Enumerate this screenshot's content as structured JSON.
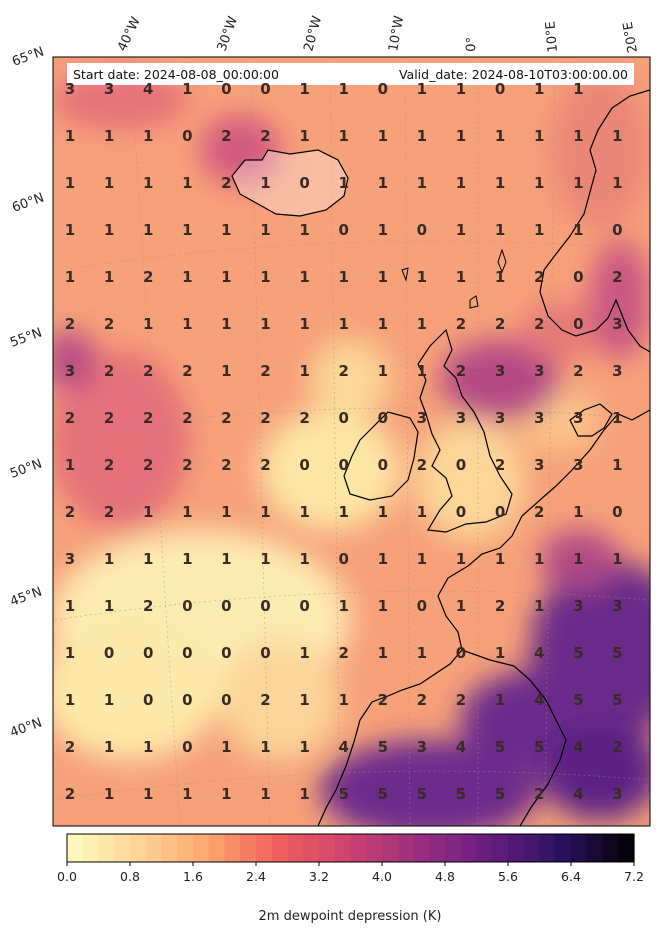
{
  "header": {
    "start_date": "Start date: 2024-08-08_00:00:00",
    "valid_date": "Valid_date: 2024-08-10T03:00:00.00"
  },
  "lon_labels": [
    "40°W",
    "30°W",
    "20°W",
    "10°W",
    "0°",
    "10°E",
    "20°E"
  ],
  "lat_labels": [
    "65°N",
    "60°N",
    "55°N",
    "50°N",
    "45°N",
    "40°N"
  ],
  "grid_values": [
    [
      "3",
      "3",
      "4",
      "1",
      "0",
      "0",
      "1",
      "1",
      "0",
      "1",
      "1",
      "0",
      "1",
      "1",
      ""
    ],
    [
      "1",
      "1",
      "1",
      "0",
      "2",
      "2",
      "1",
      "1",
      "1",
      "1",
      "1",
      "1",
      "1",
      "1",
      "1"
    ],
    [
      "1",
      "1",
      "1",
      "1",
      "2",
      "1",
      "0",
      "1",
      "1",
      "1",
      "1",
      "1",
      "1",
      "1",
      "1"
    ],
    [
      "1",
      "1",
      "1",
      "1",
      "1",
      "1",
      "1",
      "0",
      "1",
      "0",
      "1",
      "1",
      "1",
      "1",
      "0"
    ],
    [
      "1",
      "1",
      "2",
      "1",
      "1",
      "1",
      "1",
      "1",
      "1",
      "1",
      "1",
      "1",
      "2",
      "0",
      "2"
    ],
    [
      "2",
      "2",
      "1",
      "1",
      "1",
      "1",
      "1",
      "1",
      "1",
      "1",
      "2",
      "2",
      "2",
      "0",
      "3"
    ],
    [
      "3",
      "2",
      "2",
      "2",
      "1",
      "2",
      "1",
      "2",
      "1",
      "1",
      "2",
      "3",
      "3",
      "2",
      "3"
    ],
    [
      "2",
      "2",
      "2",
      "2",
      "2",
      "2",
      "2",
      "0",
      "0",
      "3",
      "3",
      "3",
      "3",
      "3",
      "1"
    ],
    [
      "1",
      "2",
      "2",
      "2",
      "2",
      "2",
      "0",
      "0",
      "0",
      "2",
      "0",
      "2",
      "3",
      "3",
      "1"
    ],
    [
      "2",
      "2",
      "1",
      "1",
      "1",
      "1",
      "1",
      "1",
      "1",
      "1",
      "0",
      "0",
      "2",
      "1",
      "0"
    ],
    [
      "3",
      "1",
      "1",
      "1",
      "1",
      "1",
      "1",
      "0",
      "1",
      "1",
      "1",
      "1",
      "1",
      "1",
      "1"
    ],
    [
      "1",
      "1",
      "2",
      "0",
      "0",
      "0",
      "0",
      "1",
      "1",
      "0",
      "1",
      "2",
      "1",
      "3",
      "3"
    ],
    [
      "1",
      "0",
      "0",
      "0",
      "0",
      "0",
      "1",
      "2",
      "1",
      "1",
      "0",
      "1",
      "4",
      "5",
      "5"
    ],
    [
      "1",
      "1",
      "0",
      "0",
      "0",
      "2",
      "1",
      "1",
      "2",
      "2",
      "2",
      "1",
      "4",
      "5",
      "5"
    ],
    [
      "2",
      "1",
      "1",
      "0",
      "1",
      "1",
      "1",
      "4",
      "5",
      "3",
      "4",
      "5",
      "5",
      "4",
      "2"
    ],
    [
      "2",
      "1",
      "1",
      "1",
      "1",
      "1",
      "1",
      "5",
      "5",
      "5",
      "5",
      "5",
      "2",
      "4",
      "3"
    ]
  ],
  "colorbar": {
    "ticks": [
      "0.0",
      "0.8",
      "1.6",
      "2.4",
      "3.2",
      "4.0",
      "4.8",
      "5.6",
      "6.4",
      "7.2"
    ],
    "label": "2m dewpoint depression (K)",
    "min": 0,
    "max": 7.2,
    "step": 0.2
  }
}
